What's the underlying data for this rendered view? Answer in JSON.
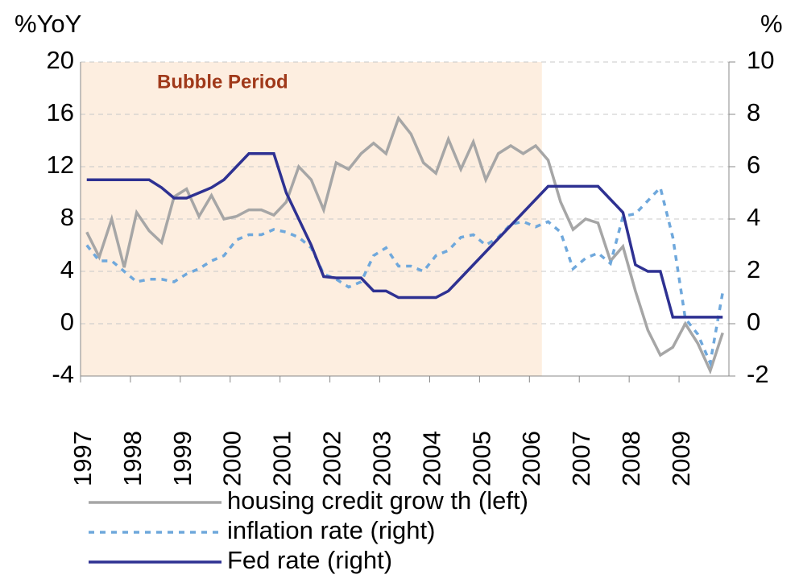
{
  "chart_data": {
    "type": "line",
    "y_label": "%YoY",
    "y2_label": "%",
    "categories": [
      "1997",
      null,
      null,
      null,
      "1998",
      null,
      null,
      null,
      "1999",
      null,
      null,
      null,
      "2000",
      null,
      null,
      null,
      "2001",
      null,
      null,
      null,
      "2002",
      null,
      null,
      null,
      "2003",
      null,
      null,
      null,
      "2004",
      null,
      null,
      null,
      "2005",
      null,
      null,
      null,
      "2006",
      null,
      null,
      null,
      "2007",
      null,
      null,
      null,
      "2008",
      null,
      null,
      null,
      "2009",
      null,
      null,
      null
    ],
    "highlight": {
      "label": "Bubble Period",
      "start": 0,
      "end": 37,
      "color": "#fdeee0",
      "text_color": "#a0391a"
    },
    "series": [
      {
        "name": "housing credit grow th (left)",
        "color": "#a6a6a6",
        "dash": false,
        "axis": "y",
        "values": [
          7,
          5.1,
          8,
          4.3,
          8.5,
          7.1,
          6.2,
          9.7,
          10.3,
          8.2,
          9.8,
          8,
          8.2,
          8.7,
          8.7,
          8.3,
          9.3,
          12,
          11,
          8.7,
          12.3,
          11.8,
          13,
          13.8,
          13,
          15.7,
          14.5,
          12.3,
          11.5,
          14.1,
          11.8,
          13.9,
          11,
          13,
          13.6,
          13,
          13.6,
          12.5,
          9.3,
          7.2,
          8,
          7.7,
          4.8,
          5.9,
          2.5,
          -0.5,
          -2.4,
          -1.8,
          0,
          -1.5,
          -3.6,
          -0.7
        ]
      },
      {
        "name": "inflation rate (right)",
        "color": "#6fa8dc",
        "dash": true,
        "axis": "y2",
        "values": [
          3,
          2.4,
          2.4,
          2,
          1.6,
          1.7,
          1.7,
          1.6,
          1.9,
          2.1,
          2.4,
          2.6,
          3.2,
          3.4,
          3.4,
          3.6,
          3.5,
          3.3,
          2.9,
          1.9,
          1.7,
          1.4,
          1.6,
          2.6,
          2.9,
          2.2,
          2.2,
          2,
          2.6,
          2.8,
          3.3,
          3.4,
          3,
          3.3,
          3.8,
          3.9,
          3.7,
          3.9,
          3.5,
          2.1,
          2.5,
          2.7,
          2.3,
          4.1,
          4.2,
          4.7,
          5.2,
          3.3,
          0.2,
          -0.4,
          -1.5,
          1.2
        ]
      },
      {
        "name": "Fed rate (right)",
        "color": "#2e3192",
        "dash": false,
        "axis": "y2",
        "values": [
          5.5,
          5.5,
          5.5,
          5.5,
          5.5,
          5.5,
          5.2,
          4.8,
          4.8,
          5,
          5.2,
          5.5,
          6,
          6.5,
          6.5,
          6.5,
          5,
          4,
          3,
          1.8,
          1.75,
          1.75,
          1.75,
          1.25,
          1.25,
          1,
          1,
          1,
          1,
          1.25,
          1.75,
          2.25,
          2.75,
          3.25,
          3.75,
          4.25,
          4.75,
          5.25,
          5.25,
          5.25,
          5.25,
          5.25,
          4.75,
          4.25,
          2.25,
          2,
          2,
          0.25,
          0.25,
          0.25,
          0.25,
          0.25
        ]
      }
    ],
    "ylim": [
      -4,
      20
    ],
    "yticks": [
      -4,
      0,
      4,
      8,
      12,
      16,
      20
    ],
    "y2lim": [
      -2,
      10
    ],
    "y2ticks": [
      -2,
      0,
      2,
      4,
      6,
      8,
      10
    ],
    "grid": true,
    "legend": "bottom"
  }
}
